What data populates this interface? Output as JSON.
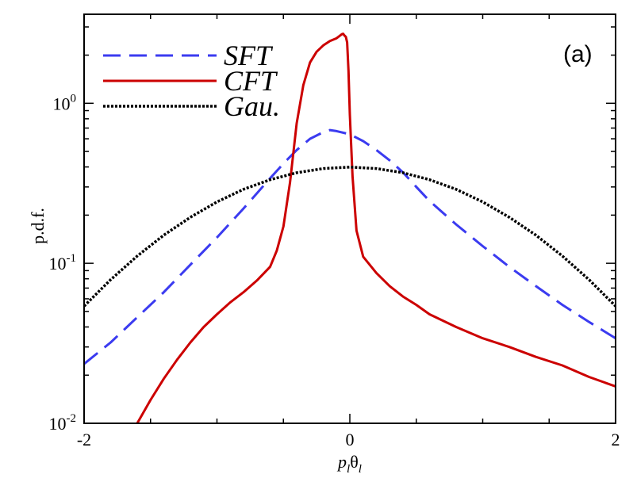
{
  "chart_data": {
    "type": "line",
    "title": "",
    "panel_label": "(a)",
    "xlabel": "p_l θ_l",
    "xlabel_parts": {
      "p": "p",
      "p_sub": "l",
      "theta": "θ",
      "theta_sub": "l"
    },
    "ylabel": "p.d.f.",
    "xlim": [
      -2,
      2
    ],
    "ylim": [
      0.01,
      3.6
    ],
    "yscale": "log",
    "xticks": [
      -2,
      0,
      2
    ],
    "xtick_labels": [
      "-2",
      "0",
      "2"
    ],
    "yticks_major": [
      {
        "value": 0.01,
        "base": "10",
        "exp": "-2"
      },
      {
        "value": 0.1,
        "base": "10",
        "exp": "-1"
      },
      {
        "value": 1,
        "base": "10",
        "exp": "0"
      }
    ],
    "legend": {
      "location": "top-left",
      "entries": [
        {
          "label": "SFT",
          "series": "SFT"
        },
        {
          "label": "CFT",
          "series": "CFT"
        },
        {
          "label": "Gau.",
          "series": "Gau"
        }
      ]
    },
    "series": [
      {
        "name": "SFT",
        "color": "#3b3bf0",
        "style": "dashed",
        "x": [
          -2.0,
          -1.8,
          -1.6,
          -1.4,
          -1.2,
          -1.0,
          -0.8,
          -0.6,
          -0.5,
          -0.4,
          -0.3,
          -0.2,
          -0.15,
          -0.1,
          0.0,
          0.1,
          0.2,
          0.3,
          0.4,
          0.5,
          0.6,
          0.8,
          1.0,
          1.2,
          1.4,
          1.6,
          1.8,
          2.0
        ],
        "values": [
          0.0235,
          0.032,
          0.046,
          0.066,
          0.098,
          0.145,
          0.22,
          0.34,
          0.42,
          0.51,
          0.6,
          0.66,
          0.68,
          0.67,
          0.64,
          0.58,
          0.51,
          0.44,
          0.37,
          0.3,
          0.245,
          0.175,
          0.128,
          0.095,
          0.072,
          0.055,
          0.043,
          0.034
        ]
      },
      {
        "name": "CFT",
        "color": "#cc0000",
        "style": "solid",
        "x": [
          -1.6,
          -1.5,
          -1.4,
          -1.3,
          -1.2,
          -1.1,
          -1.0,
          -0.9,
          -0.8,
          -0.7,
          -0.6,
          -0.55,
          -0.5,
          -0.45,
          -0.4,
          -0.35,
          -0.3,
          -0.25,
          -0.2,
          -0.15,
          -0.1,
          -0.06,
          -0.05,
          -0.04,
          -0.03,
          -0.02,
          -0.01,
          0.0,
          0.02,
          0.05,
          0.1,
          0.2,
          0.3,
          0.4,
          0.5,
          0.6,
          0.8,
          1.0,
          1.2,
          1.4,
          1.6,
          1.8,
          2.0
        ],
        "values": [
          0.01,
          0.014,
          0.019,
          0.025,
          0.032,
          0.04,
          0.048,
          0.057,
          0.066,
          0.078,
          0.095,
          0.12,
          0.17,
          0.32,
          0.75,
          1.3,
          1.8,
          2.1,
          2.3,
          2.45,
          2.55,
          2.7,
          2.72,
          2.65,
          2.6,
          2.4,
          1.6,
          0.85,
          0.35,
          0.16,
          0.11,
          0.087,
          0.072,
          0.062,
          0.055,
          0.048,
          0.04,
          0.034,
          0.03,
          0.026,
          0.023,
          0.0195,
          0.017
        ]
      },
      {
        "name": "Gau",
        "color": "#000000",
        "style": "dotted",
        "x": [
          -2.0,
          -1.8,
          -1.6,
          -1.4,
          -1.2,
          -1.0,
          -0.8,
          -0.6,
          -0.4,
          -0.2,
          0.0,
          0.2,
          0.4,
          0.6,
          0.8,
          1.0,
          1.2,
          1.4,
          1.6,
          1.8,
          2.0
        ],
        "values": [
          0.054,
          0.079,
          0.111,
          0.15,
          0.194,
          0.242,
          0.29,
          0.333,
          0.368,
          0.391,
          0.399,
          0.391,
          0.368,
          0.333,
          0.29,
          0.242,
          0.194,
          0.15,
          0.111,
          0.079,
          0.054
        ]
      }
    ]
  }
}
